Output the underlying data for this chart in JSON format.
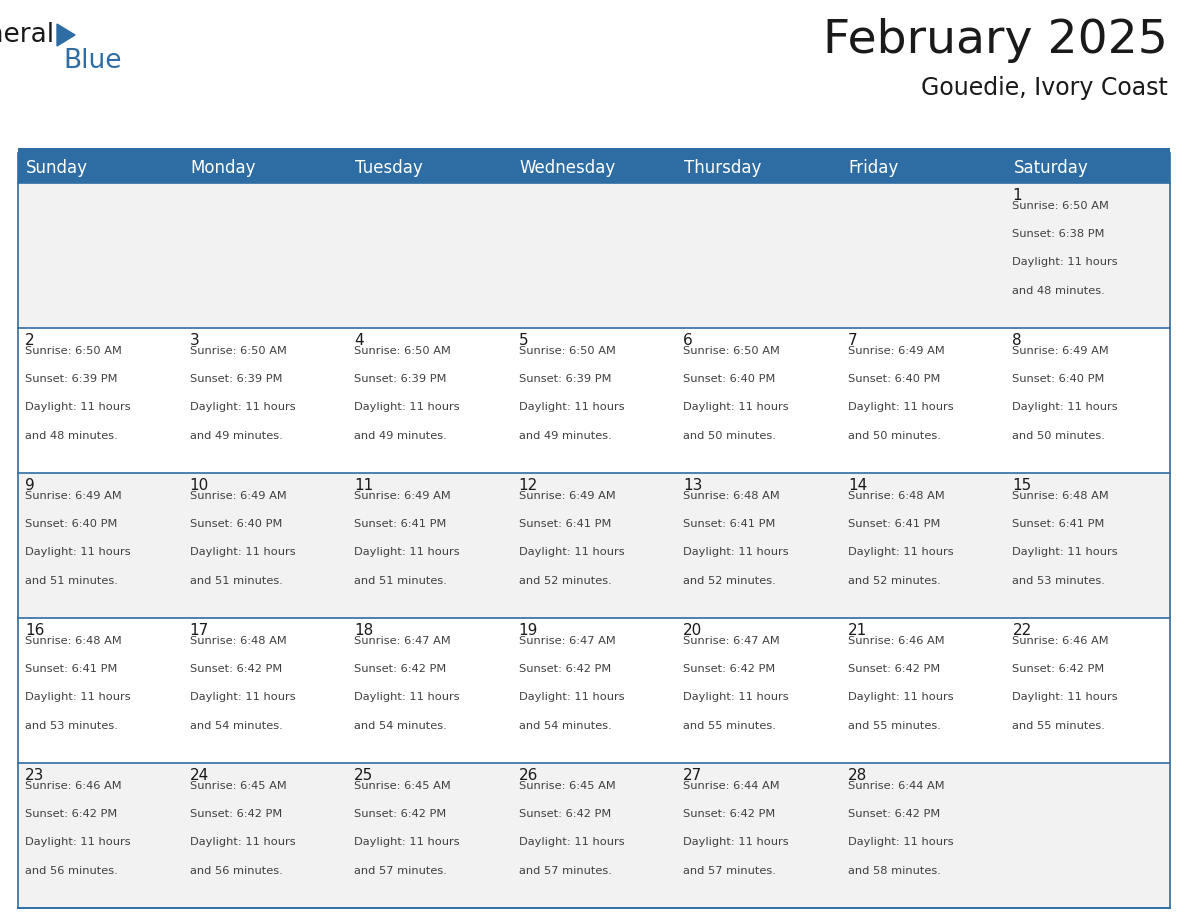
{
  "title": "February 2025",
  "subtitle": "Gouedie, Ivory Coast",
  "header_bg": "#2E6DA4",
  "header_text_color": "#FFFFFF",
  "row_bg_odd": "#F2F2F2",
  "row_bg_even": "#FFFFFF",
  "border_color": "#2E6DA4",
  "separator_color": "#3A7FC1",
  "day_headers": [
    "Sunday",
    "Monday",
    "Tuesday",
    "Wednesday",
    "Thursday",
    "Friday",
    "Saturday"
  ],
  "days_data": [
    {
      "day": 1,
      "col": 6,
      "row": 0,
      "sunrise": "6:50 AM",
      "sunset": "6:38 PM",
      "daylight": "11 hours and 48 minutes."
    },
    {
      "day": 2,
      "col": 0,
      "row": 1,
      "sunrise": "6:50 AM",
      "sunset": "6:39 PM",
      "daylight": "11 hours and 48 minutes."
    },
    {
      "day": 3,
      "col": 1,
      "row": 1,
      "sunrise": "6:50 AM",
      "sunset": "6:39 PM",
      "daylight": "11 hours and 49 minutes."
    },
    {
      "day": 4,
      "col": 2,
      "row": 1,
      "sunrise": "6:50 AM",
      "sunset": "6:39 PM",
      "daylight": "11 hours and 49 minutes."
    },
    {
      "day": 5,
      "col": 3,
      "row": 1,
      "sunrise": "6:50 AM",
      "sunset": "6:39 PM",
      "daylight": "11 hours and 49 minutes."
    },
    {
      "day": 6,
      "col": 4,
      "row": 1,
      "sunrise": "6:50 AM",
      "sunset": "6:40 PM",
      "daylight": "11 hours and 50 minutes."
    },
    {
      "day": 7,
      "col": 5,
      "row": 1,
      "sunrise": "6:49 AM",
      "sunset": "6:40 PM",
      "daylight": "11 hours and 50 minutes."
    },
    {
      "day": 8,
      "col": 6,
      "row": 1,
      "sunrise": "6:49 AM",
      "sunset": "6:40 PM",
      "daylight": "11 hours and 50 minutes."
    },
    {
      "day": 9,
      "col": 0,
      "row": 2,
      "sunrise": "6:49 AM",
      "sunset": "6:40 PM",
      "daylight": "11 hours and 51 minutes."
    },
    {
      "day": 10,
      "col": 1,
      "row": 2,
      "sunrise": "6:49 AM",
      "sunset": "6:40 PM",
      "daylight": "11 hours and 51 minutes."
    },
    {
      "day": 11,
      "col": 2,
      "row": 2,
      "sunrise": "6:49 AM",
      "sunset": "6:41 PM",
      "daylight": "11 hours and 51 minutes."
    },
    {
      "day": 12,
      "col": 3,
      "row": 2,
      "sunrise": "6:49 AM",
      "sunset": "6:41 PM",
      "daylight": "11 hours and 52 minutes."
    },
    {
      "day": 13,
      "col": 4,
      "row": 2,
      "sunrise": "6:48 AM",
      "sunset": "6:41 PM",
      "daylight": "11 hours and 52 minutes."
    },
    {
      "day": 14,
      "col": 5,
      "row": 2,
      "sunrise": "6:48 AM",
      "sunset": "6:41 PM",
      "daylight": "11 hours and 52 minutes."
    },
    {
      "day": 15,
      "col": 6,
      "row": 2,
      "sunrise": "6:48 AM",
      "sunset": "6:41 PM",
      "daylight": "11 hours and 53 minutes."
    },
    {
      "day": 16,
      "col": 0,
      "row": 3,
      "sunrise": "6:48 AM",
      "sunset": "6:41 PM",
      "daylight": "11 hours and 53 minutes."
    },
    {
      "day": 17,
      "col": 1,
      "row": 3,
      "sunrise": "6:48 AM",
      "sunset": "6:42 PM",
      "daylight": "11 hours and 54 minutes."
    },
    {
      "day": 18,
      "col": 2,
      "row": 3,
      "sunrise": "6:47 AM",
      "sunset": "6:42 PM",
      "daylight": "11 hours and 54 minutes."
    },
    {
      "day": 19,
      "col": 3,
      "row": 3,
      "sunrise": "6:47 AM",
      "sunset": "6:42 PM",
      "daylight": "11 hours and 54 minutes."
    },
    {
      "day": 20,
      "col": 4,
      "row": 3,
      "sunrise": "6:47 AM",
      "sunset": "6:42 PM",
      "daylight": "11 hours and 55 minutes."
    },
    {
      "day": 21,
      "col": 5,
      "row": 3,
      "sunrise": "6:46 AM",
      "sunset": "6:42 PM",
      "daylight": "11 hours and 55 minutes."
    },
    {
      "day": 22,
      "col": 6,
      "row": 3,
      "sunrise": "6:46 AM",
      "sunset": "6:42 PM",
      "daylight": "11 hours and 55 minutes."
    },
    {
      "day": 23,
      "col": 0,
      "row": 4,
      "sunrise": "6:46 AM",
      "sunset": "6:42 PM",
      "daylight": "11 hours and 56 minutes."
    },
    {
      "day": 24,
      "col": 1,
      "row": 4,
      "sunrise": "6:45 AM",
      "sunset": "6:42 PM",
      "daylight": "11 hours and 56 minutes."
    },
    {
      "day": 25,
      "col": 2,
      "row": 4,
      "sunrise": "6:45 AM",
      "sunset": "6:42 PM",
      "daylight": "11 hours and 57 minutes."
    },
    {
      "day": 26,
      "col": 3,
      "row": 4,
      "sunrise": "6:45 AM",
      "sunset": "6:42 PM",
      "daylight": "11 hours and 57 minutes."
    },
    {
      "day": 27,
      "col": 4,
      "row": 4,
      "sunrise": "6:44 AM",
      "sunset": "6:42 PM",
      "daylight": "11 hours and 57 minutes."
    },
    {
      "day": 28,
      "col": 5,
      "row": 4,
      "sunrise": "6:44 AM",
      "sunset": "6:42 PM",
      "daylight": "11 hours and 58 minutes."
    }
  ],
  "num_rows": 5,
  "num_cols": 7,
  "title_fontsize": 34,
  "subtitle_fontsize": 17,
  "header_fontsize": 12,
  "day_number_fontsize": 11,
  "cell_text_fontsize": 8.2,
  "logo_general_fontsize": 19,
  "logo_blue_fontsize": 19
}
